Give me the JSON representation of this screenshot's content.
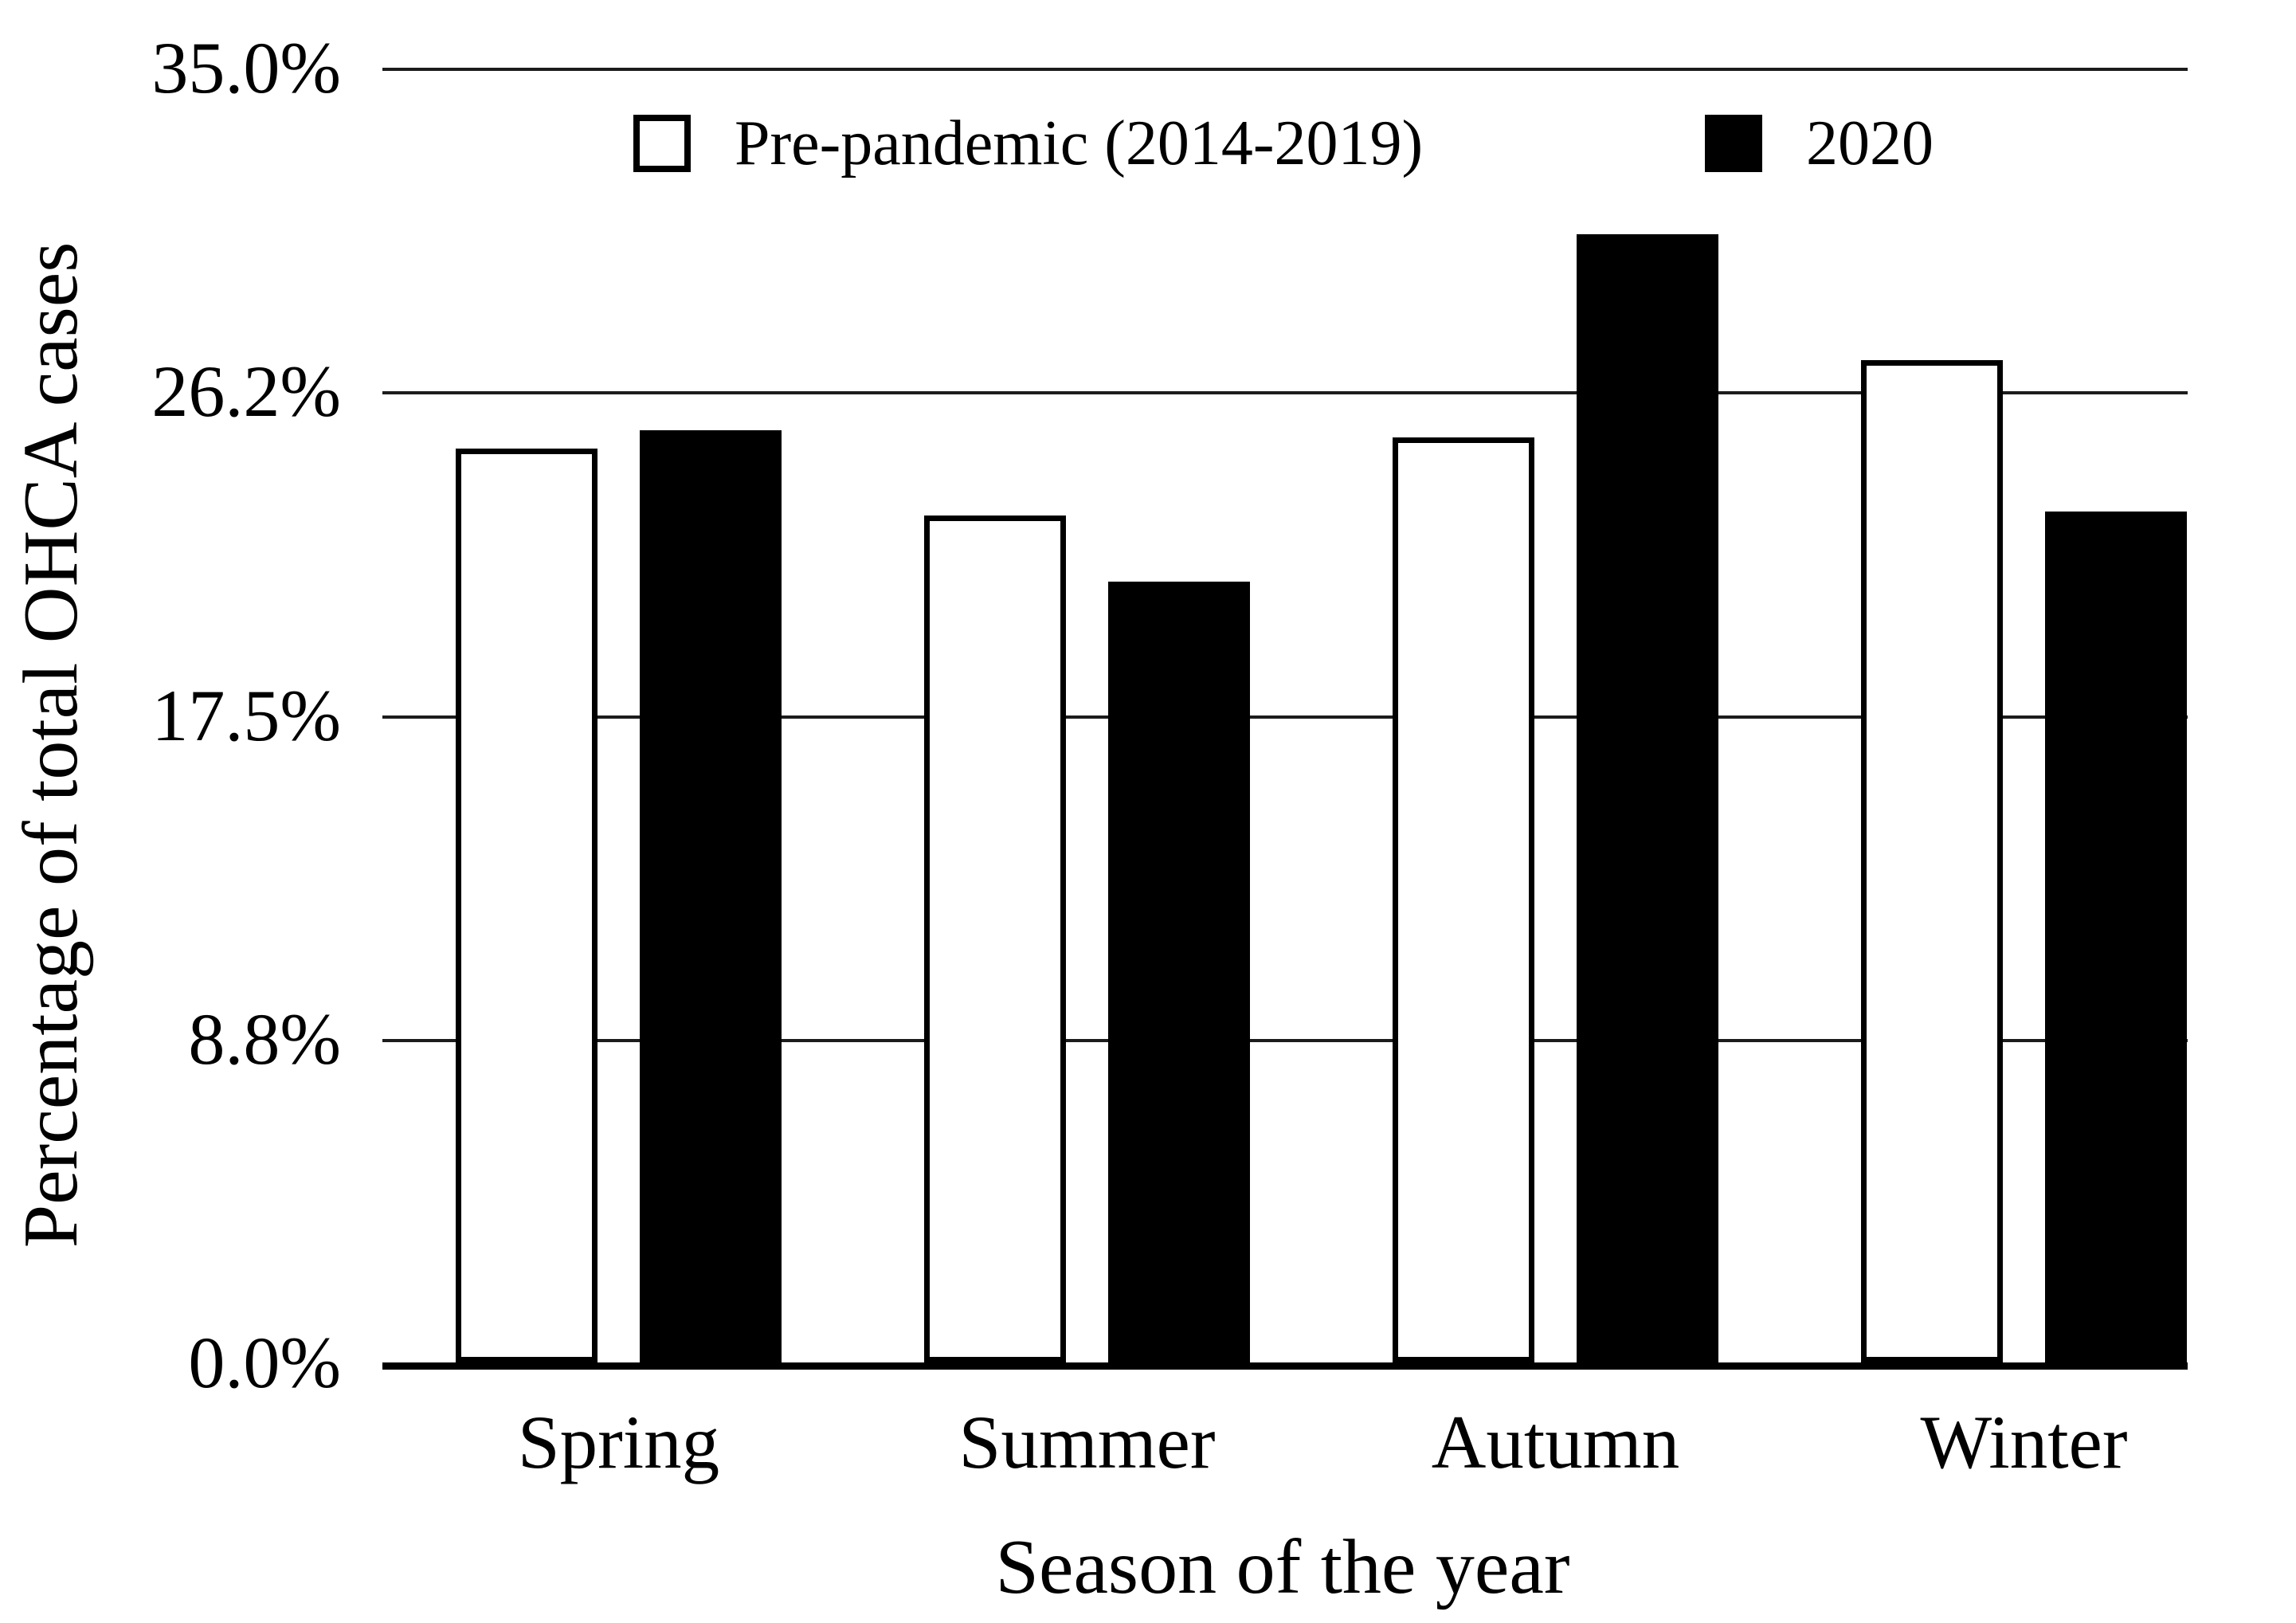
{
  "figure": {
    "background_color": "#ffffff",
    "ink_color": "#000000"
  },
  "chart_data": {
    "type": "bar",
    "title": "",
    "categories": [
      "Spring",
      "Summer",
      "Autumn",
      "Winter"
    ],
    "series": [
      {
        "name": "Pre-pandemic (2014-2019)",
        "fill": "#ffffff",
        "outline": "#000000",
        "values": [
          24.7,
          22.9,
          25.0,
          27.1
        ]
      },
      {
        "name": "2020",
        "fill": "#000000",
        "outline": "#000000",
        "values": [
          25.2,
          21.1,
          30.5,
          23.0
        ]
      }
    ],
    "value_unit": "%",
    "xlabel": "Season of the year",
    "ylabel": "Percentage of total OHCA cases",
    "yticks": [
      "0.0%",
      "8.8%",
      "17.5%",
      "26.2%",
      "35.0%"
    ],
    "ylim": [
      0,
      35
    ],
    "grid": "horizontal",
    "legend_position": "top-inside"
  }
}
